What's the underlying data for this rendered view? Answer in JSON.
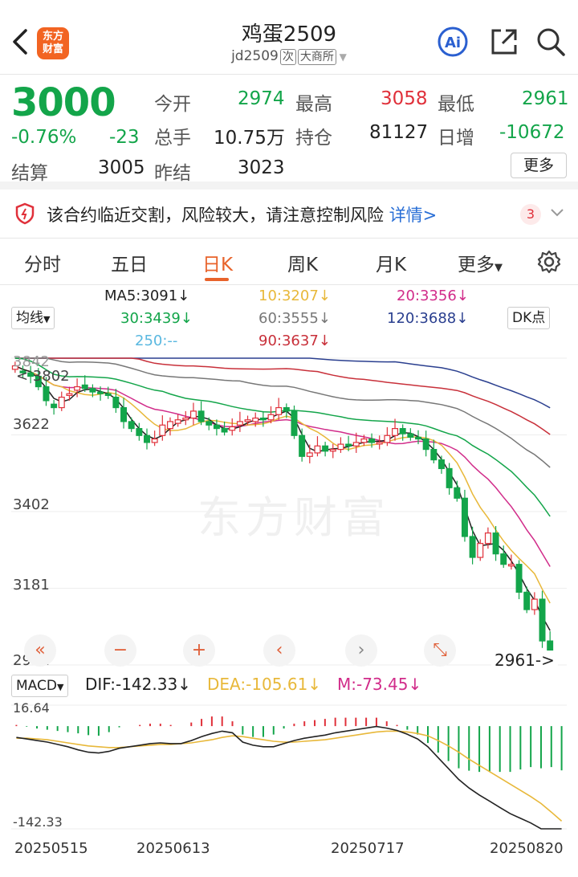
{
  "header": {
    "logo_text": "东方财富",
    "title": "鸡蛋2509",
    "code": "jd2509",
    "tag1": "次",
    "tag2": "大商所",
    "icons": [
      "back-icon",
      "ai-icon",
      "share-icon",
      "search-icon"
    ]
  },
  "quote": {
    "price": "3000",
    "change_pct": "-0.76%",
    "change": "-23",
    "settle_label": "结算",
    "settle": "3005",
    "prev_settle_label": "昨结",
    "prev_settle": "3023",
    "open_label": "今开",
    "open": "2974",
    "high_label": "最高",
    "high": "3058",
    "low_label": "最低",
    "low": "2961",
    "volume_label": "总手",
    "volume": "10.75万",
    "oi_label": "持仓",
    "oi": "81127",
    "oi_change_label": "日增",
    "oi_change": "-10672",
    "more_label": "更多"
  },
  "risk": {
    "text": "该合约临近交割，风险较大，请注意控制风险",
    "link": "详情>",
    "count": "3"
  },
  "tabs": [
    "分时",
    "五日",
    "日K",
    "周K",
    "月K",
    "更多"
  ],
  "indicators": {
    "select": "均线",
    "dk": "DK点",
    "ma5": "MA5:3091↓",
    "ma10": "10:3207↓",
    "ma20": "20:3356↓",
    "ma30": "30:3439↓",
    "ma60": "60:3555↓",
    "ma120": "120:3688↓",
    "ma250": "250:--",
    "ma90": "90:3637↓"
  },
  "axis": {
    "y_top": "3842",
    "y1": "3622",
    "y2": "3402",
    "y3": "3181",
    "y_bottom": "2961",
    "max_marker": "< 3802",
    "min_marker": "2961->"
  },
  "macd": {
    "select": "MACD",
    "dif": "DIF:-142.33↓",
    "dea": "DEA:-105.61↓",
    "m": "M:-73.45↓",
    "top": "16.64",
    "bottom": "-142.33"
  },
  "dates": [
    "20250515",
    "20250613",
    "20250717",
    "20250820"
  ],
  "watermark": "东方财富",
  "controls": [
    "double-left-icon",
    "zoom-out-icon",
    "zoom-in-icon",
    "left-icon",
    "right-icon",
    "fullscreen-icon"
  ],
  "colors": {
    "up": "#e0303a",
    "down": "#13a54a",
    "accent": "#e8632b",
    "ma5": "#222222",
    "ma10": "#e8b83a",
    "ma20": "#d12c8a",
    "ma30": "#13a54a",
    "ma60": "#777777",
    "ma120": "#2a3f8f",
    "ma250": "#5ab8e0",
    "ma90": "#c8303a"
  },
  "chart_data": [
    {
      "type": "candlestick",
      "ylim": [
        2961,
        3842
      ],
      "close": [
        3820,
        3800,
        3790,
        3760,
        3720,
        3700,
        3730,
        3740,
        3760,
        3755,
        3745,
        3740,
        3735,
        3700,
        3660,
        3640,
        3620,
        3600,
        3610,
        3650,
        3660,
        3665,
        3670,
        3690,
        3660,
        3650,
        3640,
        3630,
        3645,
        3660,
        3665,
        3670,
        3665,
        3680,
        3700,
        3690,
        3620,
        3560,
        3570,
        3590,
        3575,
        3580,
        3595,
        3590,
        3600,
        3610,
        3600,
        3600,
        3620,
        3640,
        3625,
        3615,
        3610,
        3580,
        3550,
        3525,
        3470,
        3440,
        3330,
        3270,
        3310,
        3340,
        3280,
        3250,
        3250,
        3170,
        3120,
        3150,
        3030,
        3000
      ],
      "open": [
        3810,
        3805,
        3800,
        3790,
        3760,
        3710,
        3700,
        3735,
        3750,
        3765,
        3755,
        3745,
        3740,
        3730,
        3700,
        3660,
        3640,
        3620,
        3600,
        3620,
        3640,
        3655,
        3665,
        3670,
        3690,
        3660,
        3650,
        3640,
        3635,
        3650,
        3660,
        3660,
        3670,
        3665,
        3680,
        3700,
        3690,
        3620,
        3560,
        3570,
        3590,
        3575,
        3580,
        3595,
        3590,
        3600,
        3610,
        3600,
        3600,
        3620,
        3640,
        3625,
        3615,
        3610,
        3580,
        3550,
        3525,
        3470,
        3440,
        3330,
        3270,
        3310,
        3340,
        3280,
        3250,
        3250,
        3170,
        3120,
        3150,
        3030
      ]
    },
    {
      "type": "macd",
      "ylim": [
        -142.33,
        16.64
      ],
      "dif": [
        2,
        0,
        -2,
        -4,
        -7,
        -10,
        -14,
        -17,
        -18,
        -16,
        -12,
        -10,
        -8,
        -6,
        -5,
        -6,
        -6,
        -2,
        3,
        7,
        10,
        8,
        -4,
        -8,
        -10,
        -10,
        -6,
        -2,
        1,
        3,
        5,
        8,
        10,
        12,
        14,
        16,
        14,
        11,
        6,
        0,
        -10,
        -24,
        -38,
        -52,
        -63,
        -72,
        -80,
        -88,
        -96,
        -102,
        -108,
        -118,
        -128,
        -142
      ],
      "dea": [
        1,
        1,
        0,
        -1,
        -3,
        -5,
        -7,
        -9,
        -10,
        -11,
        -11,
        -10,
        -9,
        -8,
        -7,
        -7,
        -6,
        -5,
        -3,
        -1,
        2,
        4,
        3,
        1,
        -1,
        -3,
        -4,
        -4,
        -3,
        -2,
        -1,
        1,
        3,
        5,
        7,
        9,
        10,
        10,
        9,
        7,
        4,
        -2,
        -9,
        -17,
        -26,
        -34,
        -42,
        -50,
        -58,
        -66,
        -74,
        -83,
        -94,
        -105.61
      ],
      "m": [
        2,
        -1,
        -4,
        -6,
        -8,
        -10,
        -12,
        -15,
        -16,
        -10,
        -2,
        0,
        2,
        4,
        4,
        2,
        0,
        6,
        12,
        16,
        16,
        8,
        -14,
        -18,
        -18,
        -14,
        -4,
        4,
        8,
        10,
        12,
        14,
        14,
        14,
        14,
        14,
        8,
        2,
        -6,
        -14,
        -28,
        -44,
        -58,
        -70,
        -74,
        -76,
        -76,
        -76,
        -76,
        -72,
        -68,
        -70,
        -68,
        -73.45
      ]
    }
  ]
}
